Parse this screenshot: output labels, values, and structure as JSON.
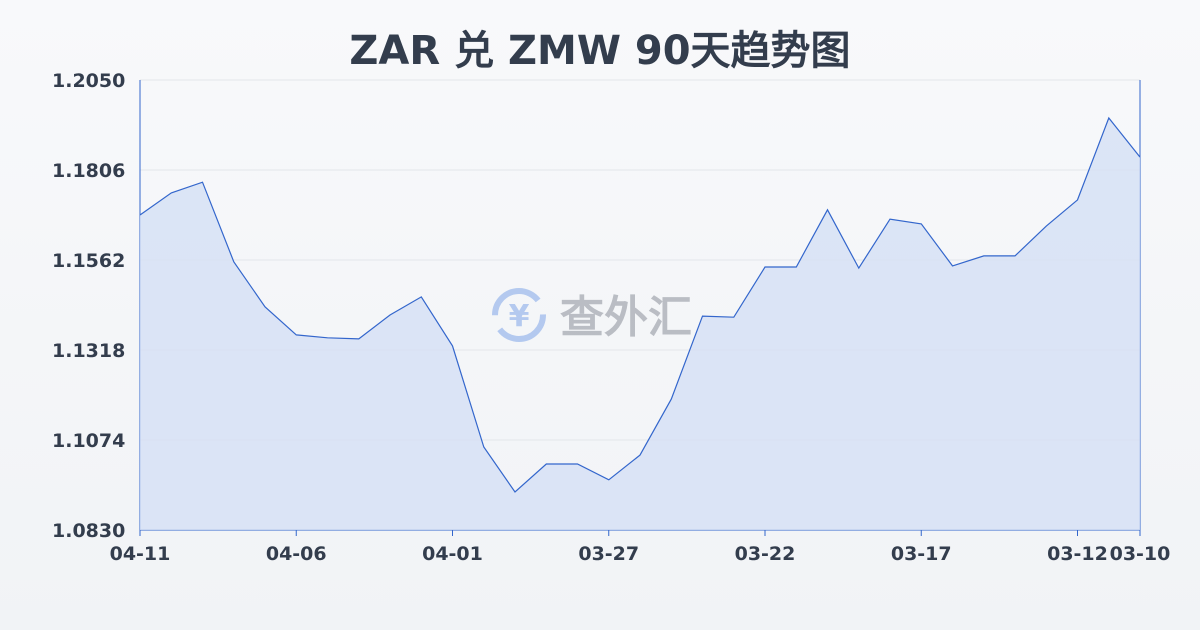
{
  "chart_data": {
    "type": "area",
    "title": "ZAR 兑 ZMW 90天趋势图",
    "xlabel": "",
    "ylabel": "",
    "ylim": [
      1.083,
      1.205
    ],
    "yticks": [
      "1.2050",
      "1.1806",
      "1.1562",
      "1.1318",
      "1.1074",
      "1.0830"
    ],
    "xticks": [
      "04-11",
      "04-06",
      "04-01",
      "03-27",
      "03-22",
      "03-17",
      "03-12",
      "03-10"
    ],
    "grid": true,
    "colors": {
      "line": "#3366cc",
      "fill": "#d5e0f5"
    },
    "x": [
      "04-11",
      "04-10",
      "04-09",
      "04-08",
      "04-07",
      "04-06",
      "04-05",
      "04-04",
      "04-03",
      "04-02",
      "04-01",
      "03-31",
      "03-30",
      "03-29",
      "03-28",
      "03-27",
      "03-26",
      "03-25",
      "03-24",
      "03-23",
      "03-22",
      "03-21",
      "03-20",
      "03-19",
      "03-18",
      "03-17",
      "03-16",
      "03-15",
      "03-14",
      "03-13",
      "03-12",
      "03-11",
      "03-10"
    ],
    "values": [
      1.1684,
      1.1744,
      1.1773,
      1.1557,
      1.1435,
      1.1359,
      1.1351,
      1.1348,
      1.1413,
      1.1462,
      1.1329,
      1.1055,
      1.0933,
      1.1009,
      1.1009,
      1.0966,
      1.1033,
      1.1185,
      1.141,
      1.1407,
      1.1543,
      1.1543,
      1.1698,
      1.154,
      1.1673,
      1.166,
      1.1546,
      1.1573,
      1.1573,
      1.1654,
      1.1725,
      1.1947,
      1.1841
    ]
  },
  "watermark": {
    "text": "查外汇",
    "icon": "yen-exchange-icon"
  }
}
